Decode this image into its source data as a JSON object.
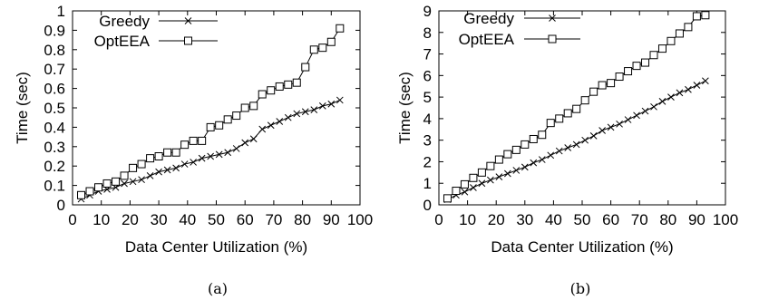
{
  "chart_data": [
    {
      "type": "line",
      "caption": "(a)",
      "xlabel": "Data Center Utilization (%)",
      "ylabel": "Time (sec)",
      "xlim": [
        0,
        100
      ],
      "ylim": [
        0,
        1
      ],
      "xticks": [
        0,
        10,
        20,
        30,
        40,
        50,
        60,
        70,
        80,
        90,
        100
      ],
      "xtick_labels": [
        "0",
        "10",
        "20",
        "30",
        "40",
        "50",
        "60",
        "70",
        "80",
        "90",
        "100"
      ],
      "yticks": [
        0,
        0.1,
        0.2,
        0.3,
        0.4,
        0.5,
        0.6,
        0.7,
        0.8,
        0.9,
        1
      ],
      "ytick_labels": [
        "0",
        "0.1",
        "0.2",
        "0.3",
        "0.4",
        "0.5",
        "0.6",
        "0.7",
        "0.8",
        "0.9",
        "1"
      ],
      "grid": false,
      "legend_position": "top-left",
      "series": [
        {
          "name": "Greedy",
          "marker": "x",
          "x": [
            3,
            6,
            9,
            12,
            15,
            18,
            21,
            24,
            27,
            30,
            33,
            36,
            39,
            42,
            45,
            48,
            51,
            54,
            57,
            60,
            63,
            66,
            69,
            72,
            75,
            78,
            81,
            84,
            87,
            90,
            93
          ],
          "y": [
            0.03,
            0.05,
            0.07,
            0.08,
            0.09,
            0.11,
            0.12,
            0.13,
            0.15,
            0.17,
            0.18,
            0.19,
            0.21,
            0.22,
            0.24,
            0.25,
            0.26,
            0.27,
            0.29,
            0.32,
            0.34,
            0.39,
            0.41,
            0.43,
            0.45,
            0.47,
            0.48,
            0.49,
            0.51,
            0.52,
            0.54
          ]
        },
        {
          "name": "OptEEA",
          "marker": "square",
          "x": [
            3,
            6,
            9,
            12,
            15,
            18,
            21,
            24,
            27,
            30,
            33,
            36,
            39,
            42,
            45,
            48,
            51,
            54,
            57,
            60,
            63,
            66,
            69,
            72,
            75,
            78,
            81,
            84,
            87,
            90,
            93
          ],
          "y": [
            0.05,
            0.07,
            0.09,
            0.11,
            0.12,
            0.15,
            0.19,
            0.21,
            0.24,
            0.25,
            0.27,
            0.27,
            0.31,
            0.33,
            0.33,
            0.4,
            0.41,
            0.44,
            0.46,
            0.5,
            0.51,
            0.57,
            0.59,
            0.61,
            0.62,
            0.63,
            0.71,
            0.8,
            0.81,
            0.84,
            0.91
          ]
        }
      ]
    },
    {
      "type": "line",
      "caption": "(b)",
      "xlabel": "Data Center Utilization (%)",
      "ylabel": "Time (sec)",
      "xlim": [
        0,
        100
      ],
      "ylim": [
        0,
        9
      ],
      "xticks": [
        0,
        10,
        20,
        30,
        40,
        50,
        60,
        70,
        80,
        90,
        100
      ],
      "xtick_labels": [
        "0",
        "10",
        "20",
        "30",
        "40",
        "50",
        "60",
        "70",
        "80",
        "90",
        "100"
      ],
      "yticks": [
        0,
        1,
        2,
        3,
        4,
        5,
        6,
        7,
        8,
        9
      ],
      "ytick_labels": [
        "0",
        "1",
        "2",
        "3",
        "4",
        "5",
        "6",
        "7",
        "8",
        "9"
      ],
      "grid": false,
      "legend_position": "top-left",
      "series": [
        {
          "name": "Greedy",
          "marker": "x",
          "x": [
            3,
            6,
            9,
            12,
            15,
            18,
            21,
            24,
            27,
            30,
            33,
            36,
            39,
            42,
            45,
            48,
            51,
            54,
            57,
            60,
            63,
            66,
            69,
            72,
            75,
            78,
            81,
            84,
            87,
            90,
            93
          ],
          "y": [
            0.25,
            0.45,
            0.6,
            0.8,
            1.0,
            1.15,
            1.3,
            1.45,
            1.6,
            1.75,
            1.95,
            2.1,
            2.3,
            2.5,
            2.65,
            2.8,
            3.0,
            3.2,
            3.45,
            3.6,
            3.75,
            3.95,
            4.15,
            4.35,
            4.55,
            4.8,
            5.0,
            5.2,
            5.35,
            5.55,
            5.75
          ]
        },
        {
          "name": "OptEEA",
          "marker": "square",
          "x": [
            3,
            6,
            9,
            12,
            15,
            18,
            21,
            24,
            27,
            30,
            33,
            36,
            39,
            42,
            45,
            48,
            51,
            54,
            57,
            60,
            63,
            66,
            69,
            72,
            75,
            78,
            81,
            84,
            87,
            90,
            93
          ],
          "y": [
            0.3,
            0.65,
            0.95,
            1.25,
            1.5,
            1.8,
            2.1,
            2.35,
            2.55,
            2.8,
            3.05,
            3.25,
            3.8,
            4.0,
            4.25,
            4.45,
            4.85,
            5.25,
            5.55,
            5.65,
            5.95,
            6.2,
            6.45,
            6.6,
            6.95,
            7.25,
            7.6,
            7.95,
            8.25,
            8.75,
            8.8
          ]
        }
      ]
    }
  ]
}
